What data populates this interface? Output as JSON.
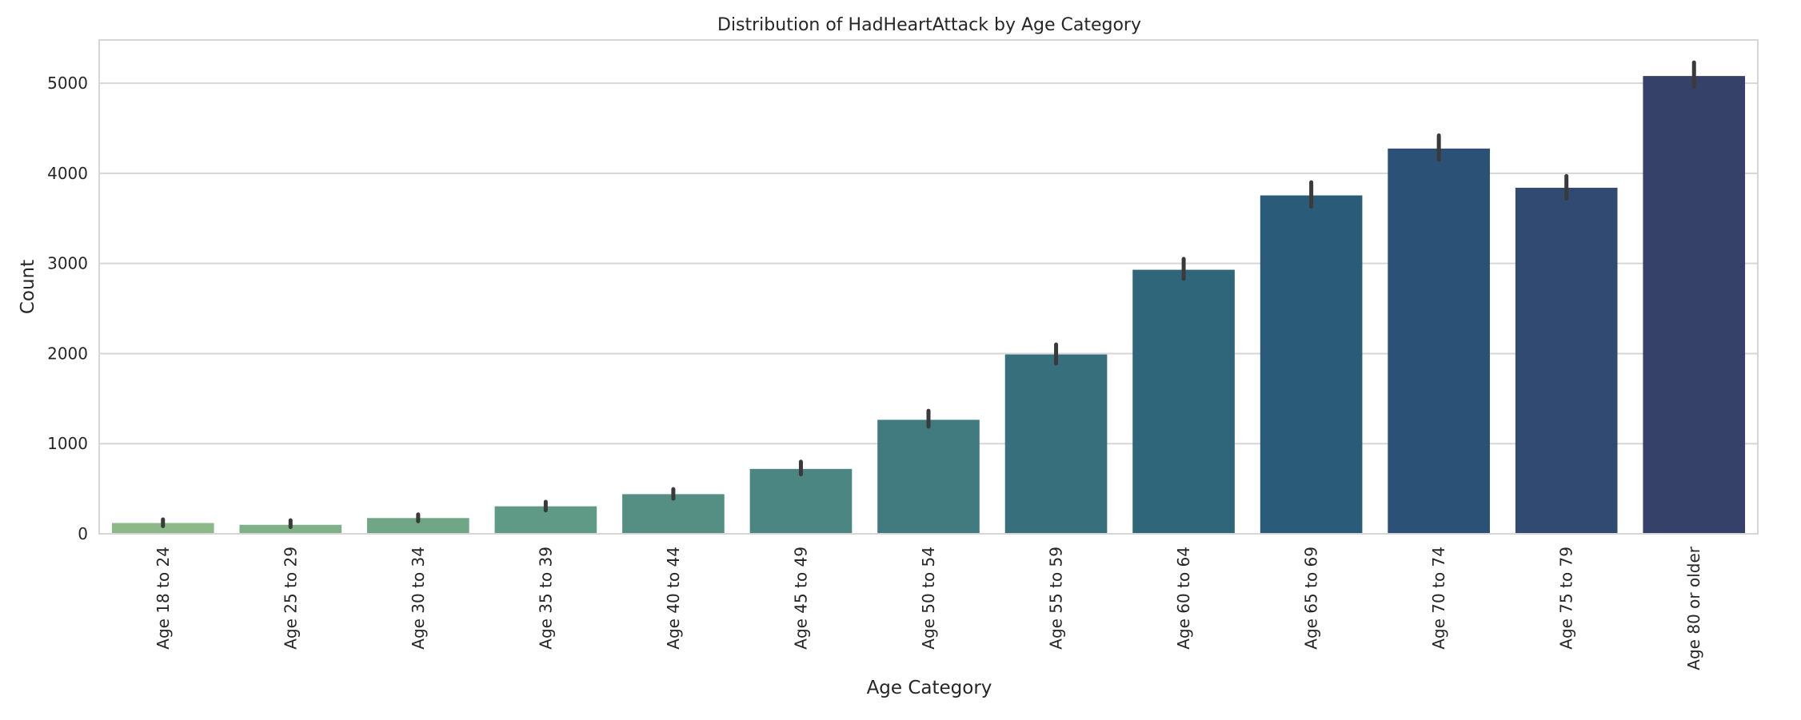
{
  "chart_data": {
    "type": "bar",
    "title": "Distribution of HadHeartAttack by Age Category",
    "xlabel": "Age Category",
    "ylabel": "Count",
    "categories": [
      "Age 18 to 24",
      "Age 25 to 29",
      "Age 30 to 34",
      "Age 35 to 39",
      "Age 40 to 44",
      "Age 45 to 49",
      "Age 50 to 54",
      "Age 55 to 59",
      "Age 60 to 64",
      "Age 65 to 69",
      "Age 70 to 74",
      "Age 75 to 79",
      "Age 80 or older"
    ],
    "values": [
      120,
      100,
      175,
      305,
      440,
      720,
      1265,
      1990,
      2930,
      3755,
      4275,
      3840,
      5080
    ],
    "error_bars": [
      [
        85,
        160
      ],
      [
        75,
        150
      ],
      [
        140,
        215
      ],
      [
        260,
        355
      ],
      [
        390,
        495
      ],
      [
        660,
        800
      ],
      [
        1190,
        1365
      ],
      [
        1890,
        2100
      ],
      [
        2830,
        3050
      ],
      [
        3630,
        3900
      ],
      [
        4150,
        4420
      ],
      [
        3720,
        3970
      ],
      [
        4960,
        5230
      ]
    ],
    "ylim": [
      0,
      5480
    ],
    "yticks": [
      0,
      1000,
      2000,
      3000,
      4000,
      5000
    ],
    "grid": "horizontal",
    "bar_colors": [
      "#8db887",
      "#7fb087",
      "#6ea686",
      "#5e9a85",
      "#558f84",
      "#4b8683",
      "#417b80",
      "#386f7c",
      "#2f6679",
      "#2a5b79",
      "#2b5276",
      "#304a72",
      "#36416a"
    ],
    "errorbar_color": "#3a3a3a"
  }
}
